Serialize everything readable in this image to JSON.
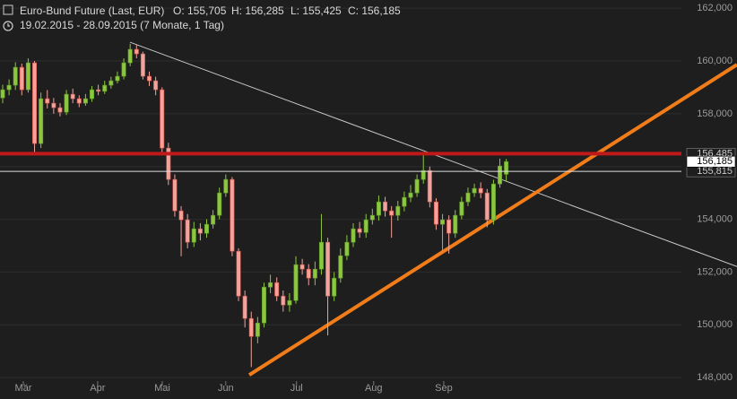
{
  "chart_data": {
    "type": "candlestick",
    "title": "Euro-Bund Future (Last, EUR)",
    "ohlc_labels": [
      "O: 155,705",
      "H: 156,285",
      "L: 155,425",
      "C: 156,185"
    ],
    "subtitle": "19.02.2015 - 28.09.2015 (7 Monate, 1 Tag)",
    "xlim": [
      -0.42,
      115.2
    ],
    "xticks": [
      {
        "value": 3.24,
        "label": "Mär"
      },
      {
        "value": 14.9,
        "label": "Apr"
      },
      {
        "value": 25.04,
        "label": "Mai"
      },
      {
        "value": 35.0,
        "label": "Jun"
      },
      {
        "value": 46.1,
        "label": "Jul"
      },
      {
        "value": 58.2,
        "label": "Aug"
      },
      {
        "value": 69.2,
        "label": "Sep"
      }
    ],
    "ylim": [
      147190,
      162310
    ],
    "yticks": [
      {
        "value": 148000,
        "label": "148,000"
      },
      {
        "value": 150000,
        "label": "150,000"
      },
      {
        "value": 152000,
        "label": "152,000"
      },
      {
        "value": 154000,
        "label": "154,000"
      },
      {
        "value": 156000,
        "label": "156,000"
      },
      {
        "value": 158000,
        "label": "158,000"
      },
      {
        "value": 160000,
        "label": "160,000"
      },
      {
        "value": 162000,
        "label": "162,000"
      }
    ],
    "grid": true,
    "up_color": "#8dc63f",
    "down_color": "#f2a39b",
    "open": [
      158600,
      158910,
      159080,
      159760,
      158910,
      159930,
      156870,
      158570,
      158400,
      158230,
      158060,
      158740,
      158570,
      158400,
      158570,
      158910,
      158850,
      159080,
      159250,
      159420,
      159930,
      160440,
      160270,
      159420,
      159250,
      158910,
      156700,
      155510,
      154320,
      153980,
      153130,
      153640,
      153470,
      153810,
      154150,
      155000,
      155510,
      152790,
      151090,
      150240,
      149560,
      150070,
      151430,
      151600,
      151090,
      150750,
      150920,
      152280,
      152110,
      151770,
      152110,
      153130,
      151090,
      151770,
      152620,
      153130,
      153640,
      153500,
      153980,
      154150,
      154660,
      154320,
      154150,
      154490,
      154830,
      155000,
      155510,
      155850,
      154660,
      153810,
      153980,
      153470,
      154150,
      154660,
      155000,
      155170,
      155000,
      153980,
      155340,
      155705
    ],
    "high": [
      159100,
      159300,
      159950,
      159900,
      160100,
      160000,
      158800,
      158900,
      158600,
      158400,
      158900,
      158950,
      158700,
      158750,
      159050,
      159100,
      159250,
      159400,
      159600,
      160100,
      160650,
      160600,
      160350,
      159600,
      159400,
      159000,
      156900,
      155700,
      154500,
      154200,
      153900,
      153850,
      154000,
      154350,
      155200,
      155700,
      155600,
      152900,
      151300,
      150500,
      150300,
      151600,
      151900,
      151800,
      151300,
      151200,
      152600,
      152500,
      152300,
      152400,
      154200,
      153300,
      152000,
      152900,
      153400,
      153850,
      153900,
      154200,
      154400,
      154900,
      154850,
      154500,
      154700,
      155050,
      155300,
      155700,
      156450,
      156000,
      154800,
      154200,
      154150,
      154350,
      154850,
      155200,
      155350,
      155400,
      155150,
      155500,
      156300,
      156285
    ],
    "low": [
      158400,
      158700,
      158900,
      158700,
      158800,
      156500,
      156700,
      158200,
      158000,
      157900,
      157950,
      158400,
      158250,
      158300,
      158450,
      158700,
      158750,
      158950,
      159150,
      159300,
      159800,
      160100,
      159300,
      159050,
      158700,
      156500,
      155300,
      154100,
      152600,
      152900,
      152950,
      153200,
      153300,
      153650,
      154000,
      154850,
      152600,
      150900,
      149900,
      148400,
      149300,
      149900,
      151200,
      150900,
      150500,
      150500,
      150800,
      151900,
      151500,
      151500,
      151900,
      149600,
      150900,
      151600,
      152450,
      152950,
      153300,
      153300,
      153800,
      153950,
      154100,
      153300,
      153950,
      154300,
      154650,
      154850,
      155350,
      154450,
      153600,
      152800,
      152700,
      153300,
      154000,
      154500,
      154850,
      154800,
      153700,
      153800,
      155200,
      155425
    ],
    "close": [
      158910,
      159080,
      159760,
      158910,
      159930,
      156870,
      158570,
      158400,
      158230,
      158060,
      158740,
      158570,
      158400,
      158570,
      158910,
      158850,
      159080,
      159250,
      159420,
      159930,
      160440,
      160270,
      159420,
      159250,
      158910,
      156700,
      155510,
      154320,
      153980,
      153130,
      153640,
      153470,
      153810,
      154150,
      155000,
      155510,
      152790,
      151090,
      150240,
      149560,
      150070,
      151430,
      151600,
      151090,
      150750,
      150920,
      152280,
      152110,
      151770,
      152110,
      153130,
      151090,
      151770,
      152620,
      153130,
      153640,
      153500,
      153980,
      154150,
      154660,
      154320,
      154150,
      154490,
      154830,
      155000,
      155510,
      155850,
      154660,
      153810,
      153980,
      153470,
      154150,
      154660,
      155000,
      155170,
      155000,
      153980,
      155340,
      156020,
      156185
    ],
    "trendlines": [
      {
        "x": [
          19.97,
          115.2
        ],
        "values": [
          160710,
          152210
        ],
        "color": "#c8c8c8",
        "width": 1
      },
      {
        "x": [
          38.68,
          115.2
        ],
        "values": [
          148100,
          159860
        ],
        "color": "#f07c1a",
        "width": 4
      }
    ],
    "hlines": [
      {
        "value": 156485,
        "label": "156,485",
        "color": "#c0191a",
        "width": 4
      },
      {
        "value": 155815,
        "label": "155,815",
        "color": "#e0e0e0",
        "width": 1
      },
      {
        "value": 156185,
        "label": "156,185",
        "color": "#ffffff",
        "width": 0
      }
    ]
  }
}
